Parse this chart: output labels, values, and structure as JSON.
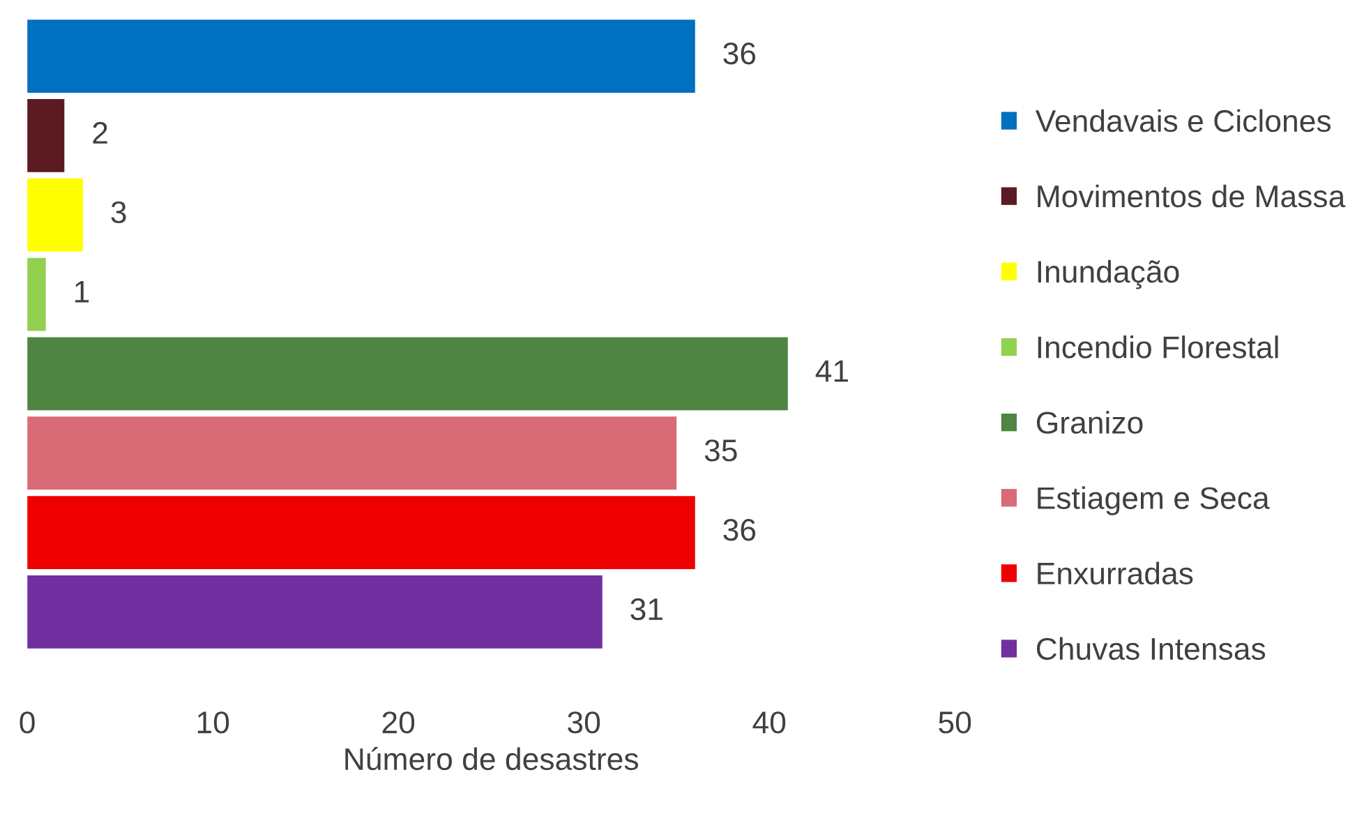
{
  "chart_data": {
    "type": "bar",
    "orientation": "horizontal",
    "stacked": true,
    "xlabel": "Número de desastres",
    "categories": [
      null,
      null,
      null,
      null,
      null,
      null,
      null,
      null
    ],
    "series": [
      {
        "name": "Vendavais e Ciclones",
        "color": "#0070c0",
        "values": [
          36,
          null,
          null,
          null,
          null,
          null,
          null,
          null
        ]
      },
      {
        "name": "Movimentos de Massa",
        "color": "#5c1a22",
        "values": [
          null,
          2,
          null,
          null,
          null,
          null,
          null,
          null
        ]
      },
      {
        "name": "Inundação",
        "color": "#ffff00",
        "values": [
          null,
          null,
          3,
          null,
          null,
          null,
          null,
          null
        ]
      },
      {
        "name": "Incendio Florestal",
        "color": "#92d050",
        "values": [
          null,
          null,
          null,
          1,
          null,
          null,
          null,
          null
        ]
      },
      {
        "name": "Granizo",
        "color": "#4e8542",
        "values": [
          null,
          null,
          null,
          null,
          41,
          null,
          null,
          null
        ]
      },
      {
        "name": "Estiagem e Seca",
        "color": "#d96b76",
        "values": [
          null,
          null,
          null,
          null,
          null,
          35,
          null,
          null
        ]
      },
      {
        "name": "Enxurradas",
        "color": "#ee0000",
        "values": [
          null,
          null,
          null,
          null,
          null,
          null,
          36,
          null
        ]
      },
      {
        "name": "Chuvas Intensas",
        "color": "#7030a0",
        "values": [
          null,
          null,
          null,
          null,
          null,
          null,
          null,
          31
        ]
      }
    ],
    "xlim": [
      0,
      50
    ],
    "xticks": [
      0,
      10,
      20,
      30,
      40,
      50
    ],
    "grid": false,
    "legend": "right",
    "data_labels": true
  }
}
